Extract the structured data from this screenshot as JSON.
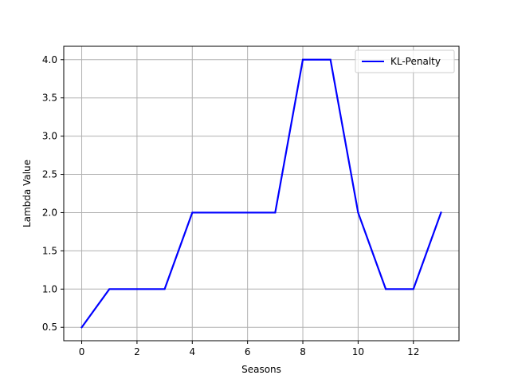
{
  "chart_data": {
    "type": "line",
    "title": "",
    "xlabel": "Seasons",
    "ylabel": "Lambda Value",
    "xlim": [
      -0.65,
      13.65
    ],
    "ylim": [
      0.325,
      4.175
    ],
    "x_ticks": [
      0,
      2,
      4,
      6,
      8,
      10,
      12
    ],
    "y_ticks": [
      0.5,
      1.0,
      1.5,
      2.0,
      2.5,
      3.0,
      3.5,
      4.0
    ],
    "x_tick_labels": [
      "0",
      "2",
      "4",
      "6",
      "8",
      "10",
      "12"
    ],
    "y_tick_labels": [
      "0.5",
      "1.0",
      "1.5",
      "2.0",
      "2.5",
      "3.0",
      "3.5",
      "4.0"
    ],
    "grid": true,
    "legend_position": "top-right",
    "series": [
      {
        "name": "KL-Penalty",
        "color": "#0000ff",
        "x": [
          0,
          1,
          2,
          3,
          4,
          5,
          6,
          7,
          8,
          9,
          10,
          11,
          12,
          13
        ],
        "values": [
          0.5,
          1.0,
          1.0,
          1.0,
          2.0,
          2.0,
          2.0,
          2.0,
          4.0,
          4.0,
          2.0,
          1.0,
          1.0,
          2.0
        ]
      }
    ]
  }
}
